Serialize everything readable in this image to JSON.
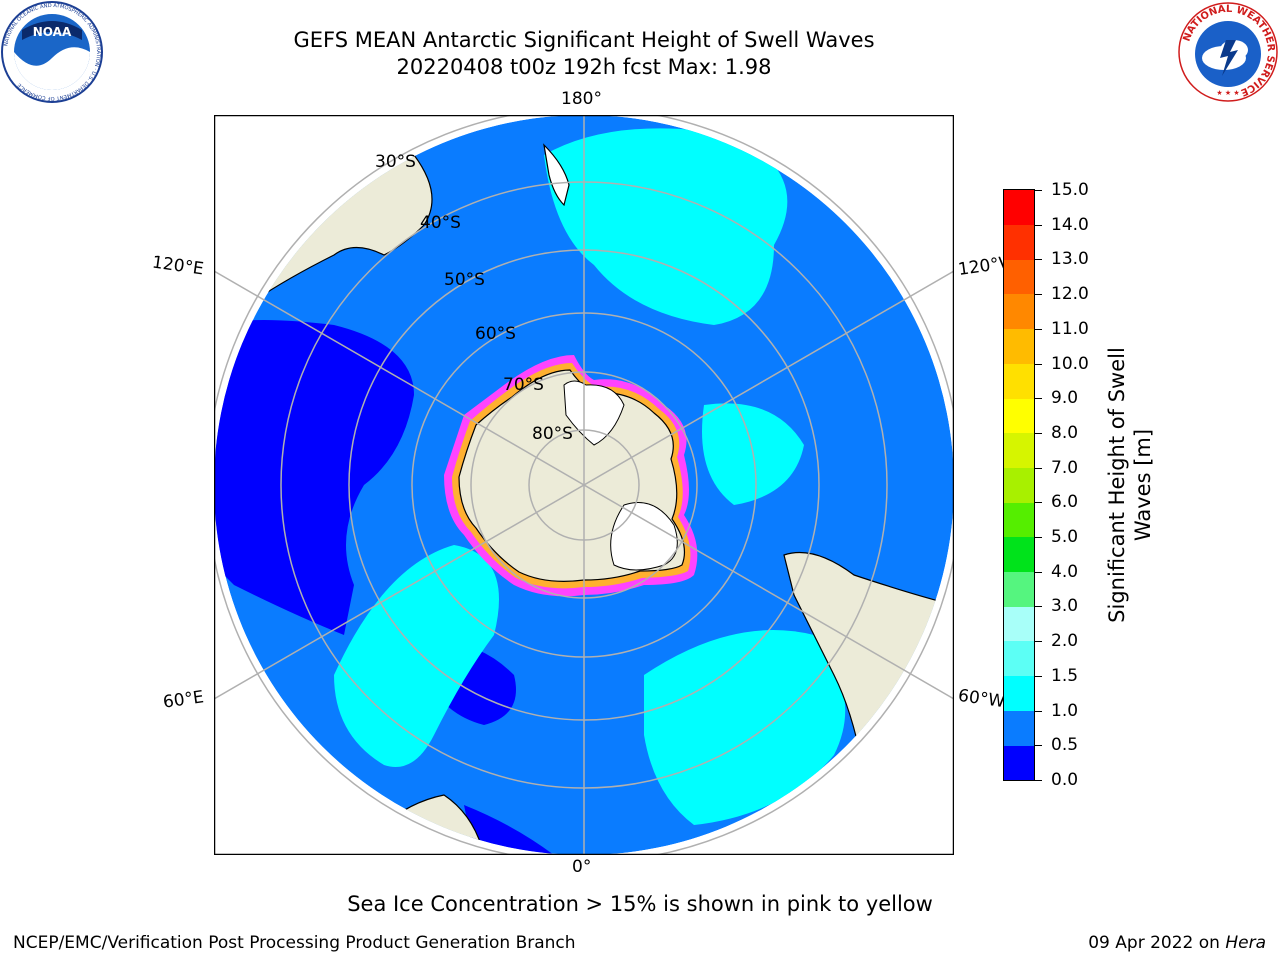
{
  "title": {
    "line1": "GEFS MEAN Antarctic Significant Height of Swell Waves",
    "line2": "20220408 t00z 192h fcst   Max: 1.98"
  },
  "map": {
    "projection": "south-polar-stereographic",
    "longitude_labels": {
      "top": "180°",
      "bottom": "0°",
      "left_upper": "120°E",
      "left_lower": "60°E",
      "right_upper": "120°W",
      "right_lower": "60°W"
    },
    "latitude_labels": [
      "30°S",
      "40°S",
      "50°S",
      "60°S",
      "70°S",
      "80°S"
    ],
    "colors": {
      "land": "#ecebd8",
      "ocean_0_0_5": "#0000ff",
      "ocean_0_5_1_0": "#0a7cff",
      "ocean_1_0_1_5": "#00ffff",
      "antarctic_ice_sheet": "#ffffff",
      "sea_ice_edge": "#ff44ff",
      "sea_ice_fringe": "#ffb030",
      "graticule": "#b0b0b0",
      "coastline": "#000000"
    }
  },
  "colorbar": {
    "title": "Significant Height of Swell Waves [m]",
    "levels": [
      "0.0",
      "0.5",
      "1.0",
      "1.5",
      "2.0",
      "3.0",
      "4.0",
      "5.0",
      "6.0",
      "7.0",
      "8.0",
      "9.0",
      "10.0",
      "11.0",
      "12.0",
      "13.0",
      "14.0",
      "15.0"
    ],
    "colors": [
      "#0000ff",
      "#0a7cff",
      "#00ffff",
      "#5cfff5",
      "#a8fff9",
      "#55f57f",
      "#00e31b",
      "#55ee00",
      "#a8f000",
      "#d6f500",
      "#ffff00",
      "#ffe000",
      "#ffbb00",
      "#ff8800",
      "#ff6000",
      "#ff3000",
      "#ff0000"
    ]
  },
  "caption": "Sea Ice Concentration > 15% is shown in pink to yellow",
  "footer": {
    "left": "NCEP/EMC/Verification Post Processing Product Generation Branch",
    "right_prefix": "09 Apr 2022 on ",
    "right_host": "Hera"
  },
  "logos": {
    "noaa": "NOAA",
    "noaa_ring": "NATIONAL OCEANIC AND ATMOSPHERIC ADMINISTRATION · U.S. DEPARTMENT OF COMMERCE",
    "nws_ring": "NATIONAL WEATHER SERVICE"
  }
}
